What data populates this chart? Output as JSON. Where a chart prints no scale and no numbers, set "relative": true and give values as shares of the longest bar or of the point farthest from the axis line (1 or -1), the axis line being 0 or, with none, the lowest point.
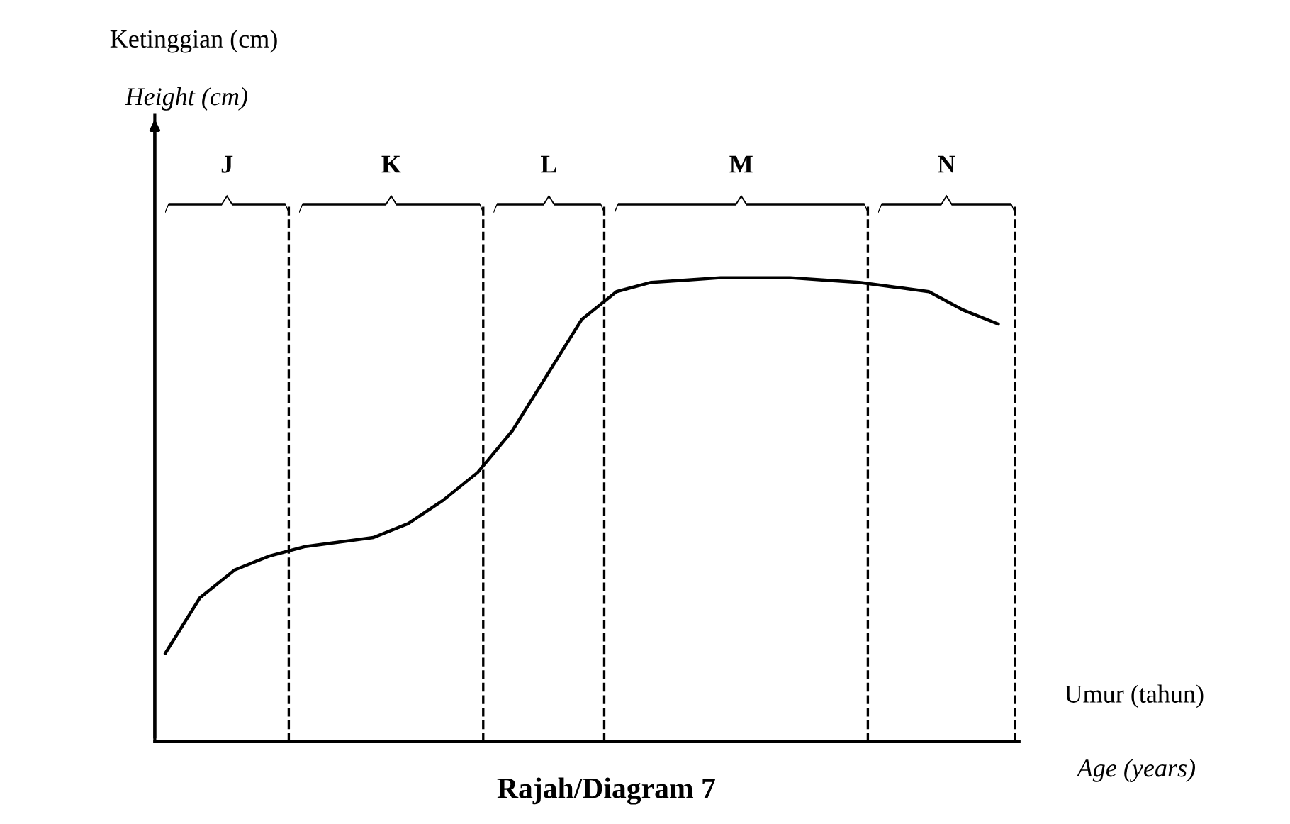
{
  "chart_data": {
    "type": "line",
    "title": "Rajah/Diagram 7",
    "xlabel": "Umur (tahun)\nAge (years)",
    "ylabel": "Ketinggian (cm)\nHeight (cm)",
    "relative": true,
    "categories": [
      null,
      null,
      null,
      null,
      null,
      null,
      null,
      null,
      null,
      null,
      null,
      null,
      null,
      null,
      null,
      null,
      null,
      null,
      null,
      null,
      null,
      null,
      null,
      null,
      null
    ],
    "series": [
      {
        "color": "#000000",
        "values": [
          0.19,
          0.31,
          0.37,
          0.4,
          0.42,
          0.43,
          0.44,
          0.47,
          0.52,
          0.58,
          0.67,
          0.79,
          0.91,
          0.97,
          0.99,
          0.995,
          1.0,
          1.0,
          1.0,
          0.995,
          0.99,
          0.98,
          0.97,
          0.93,
          0.9
        ]
      }
    ],
    "annotations": [
      "J",
      "K",
      "L",
      "M",
      "N"
    ],
    "grid": false,
    "marker": "none",
    "line_style": "solid"
  }
}
